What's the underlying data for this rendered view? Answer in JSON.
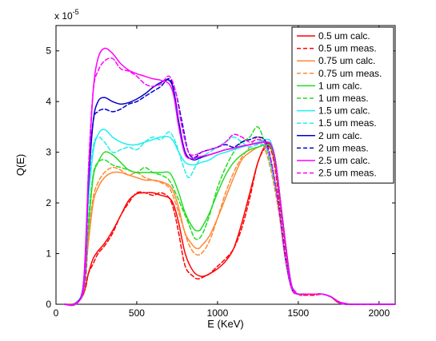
{
  "chart_data": {
    "type": "line",
    "title": "",
    "xlabel": "E (KeV)",
    "ylabel": "Q(E)",
    "y_multiplier_label": "x 10",
    "y_multiplier_exponent": "-5",
    "xlim": [
      0,
      2100
    ],
    "ylim": [
      0,
      5.5
    ],
    "xticks": [
      0,
      500,
      1000,
      1500,
      2000
    ],
    "yticks": [
      0,
      1,
      2,
      3,
      4,
      5
    ],
    "grid": false,
    "legend_position": "top-right",
    "colors": {
      "0.5": "#ff0000",
      "0.75": "#ff8833",
      "1": "#22dd22",
      "1.5": "#22eeee",
      "2": "#0000cc",
      "2.5": "#ff00ff"
    },
    "series": [
      {
        "name": "0.5 um calc.",
        "color": "#ff0000",
        "style": "solid",
        "x": [
          50,
          120,
          170,
          200,
          230,
          260,
          300,
          350,
          400,
          450,
          500,
          550,
          600,
          650,
          700,
          730,
          760,
          800,
          850,
          900,
          950,
          1000,
          1050,
          1100,
          1150,
          1200,
          1250,
          1300,
          1330,
          1360,
          1400,
          1450,
          1480,
          1500,
          1550,
          1600,
          1650,
          1700,
          1720,
          1750,
          1800,
          1850,
          2100
        ],
        "y": [
          0,
          0.02,
          0.2,
          0.6,
          0.9,
          1.05,
          1.2,
          1.45,
          1.75,
          2.05,
          2.18,
          2.2,
          2.2,
          2.15,
          2.1,
          1.95,
          1.6,
          1.0,
          0.65,
          0.55,
          0.6,
          0.7,
          0.85,
          1.1,
          1.6,
          2.2,
          2.8,
          3.15,
          3.1,
          2.7,
          1.7,
          0.5,
          0.25,
          0.2,
          0.2,
          0.2,
          0.2,
          0.15,
          0.1,
          0.03,
          0.01,
          0,
          0
        ]
      },
      {
        "name": "0.5 um meas.",
        "color": "#ff0000",
        "style": "dashed",
        "x": [
          50,
          130,
          180,
          200,
          230,
          260,
          300,
          350,
          400,
          450,
          500,
          550,
          600,
          650,
          700,
          730,
          760,
          800,
          850,
          880,
          920,
          950,
          1000,
          1050,
          1100,
          1150,
          1200,
          1250,
          1300,
          1330,
          1360,
          1400,
          1450,
          1500,
          1550,
          1600,
          1650,
          1700,
          1750,
          1800,
          2100
        ],
        "y": [
          0,
          0.02,
          0.3,
          0.6,
          0.8,
          1.0,
          1.15,
          1.4,
          1.75,
          2.0,
          2.2,
          2.2,
          2.15,
          2.2,
          2.1,
          1.85,
          1.4,
          0.75,
          0.55,
          0.5,
          0.55,
          0.6,
          0.75,
          0.9,
          1.1,
          1.5,
          2.1,
          2.8,
          3.1,
          3.05,
          2.6,
          1.5,
          0.45,
          0.2,
          0.18,
          0.18,
          0.2,
          0.15,
          0.05,
          0,
          0
        ]
      },
      {
        "name": "0.75 um calc.",
        "color": "#ff8833",
        "style": "solid",
        "x": [
          50,
          120,
          170,
          200,
          230,
          260,
          300,
          350,
          400,
          450,
          500,
          550,
          600,
          650,
          700,
          730,
          760,
          800,
          850,
          880,
          900,
          950,
          1000,
          1050,
          1100,
          1150,
          1200,
          1250,
          1300,
          1330,
          1360,
          1400,
          1450,
          1480,
          1500,
          1550,
          1600,
          1650,
          1700,
          1750,
          1800,
          1850,
          2100
        ],
        "y": [
          0,
          0.02,
          0.3,
          1.2,
          2.0,
          2.3,
          2.5,
          2.6,
          2.6,
          2.55,
          2.5,
          2.45,
          2.45,
          2.42,
          2.35,
          2.2,
          1.9,
          1.4,
          1.15,
          1.1,
          1.15,
          1.35,
          1.7,
          2.1,
          2.5,
          2.85,
          3.0,
          3.1,
          3.15,
          3.1,
          2.75,
          1.7,
          0.5,
          0.25,
          0.2,
          0.2,
          0.2,
          0.2,
          0.15,
          0.05,
          0.01,
          0,
          0
        ]
      },
      {
        "name": "0.75 um meas.",
        "color": "#ff8833",
        "style": "dashed",
        "x": [
          50,
          130,
          180,
          200,
          230,
          260,
          300,
          350,
          400,
          450,
          500,
          550,
          600,
          650,
          700,
          740,
          780,
          820,
          860,
          900,
          950,
          1000,
          1050,
          1100,
          1150,
          1200,
          1250,
          1300,
          1340,
          1380,
          1420,
          1460,
          1500,
          1550,
          1600,
          1650,
          1700,
          1750,
          1800,
          2100
        ],
        "y": [
          0,
          0.02,
          0.4,
          1.3,
          2.1,
          2.4,
          2.6,
          2.7,
          2.65,
          2.55,
          2.6,
          2.5,
          2.45,
          2.4,
          2.3,
          2.0,
          1.6,
          1.2,
          1.0,
          1.0,
          1.25,
          1.7,
          2.2,
          2.6,
          2.9,
          3.1,
          3.3,
          3.0,
          2.5,
          1.8,
          0.9,
          0.3,
          0.2,
          0.2,
          0.2,
          0.2,
          0.15,
          0.05,
          0,
          0
        ]
      },
      {
        "name": "1 um calc.",
        "color": "#22dd22",
        "style": "solid",
        "x": [
          50,
          120,
          170,
          200,
          230,
          260,
          300,
          350,
          400,
          450,
          500,
          550,
          600,
          650,
          700,
          730,
          760,
          800,
          850,
          880,
          900,
          950,
          1000,
          1050,
          1100,
          1150,
          1200,
          1250,
          1300,
          1330,
          1360,
          1400,
          1450,
          1480,
          1500,
          1550,
          1600,
          1650,
          1700,
          1750,
          1800,
          1850,
          2100
        ],
        "y": [
          0,
          0.02,
          0.3,
          1.5,
          2.5,
          2.8,
          3.0,
          2.95,
          2.8,
          2.65,
          2.6,
          2.6,
          2.6,
          2.6,
          2.6,
          2.45,
          2.2,
          1.8,
          1.5,
          1.45,
          1.5,
          1.8,
          2.2,
          2.55,
          2.8,
          2.95,
          3.05,
          3.1,
          3.15,
          3.1,
          2.75,
          1.7,
          0.5,
          0.25,
          0.2,
          0.2,
          0.2,
          0.2,
          0.15,
          0.05,
          0.01,
          0,
          0
        ]
      },
      {
        "name": "1 um meas.",
        "color": "#22dd22",
        "style": "dashed",
        "x": [
          50,
          130,
          180,
          200,
          230,
          260,
          300,
          350,
          400,
          450,
          500,
          550,
          600,
          650,
          700,
          740,
          780,
          820,
          860,
          900,
          950,
          1000,
          1050,
          1100,
          1150,
          1200,
          1250,
          1300,
          1340,
          1380,
          1420,
          1460,
          1500,
          1550,
          1600,
          1650,
          1700,
          1750,
          1800,
          2100
        ],
        "y": [
          0,
          0.02,
          0.4,
          1.6,
          2.55,
          2.8,
          2.85,
          2.75,
          2.7,
          2.65,
          2.6,
          2.7,
          2.6,
          2.55,
          2.45,
          2.2,
          1.9,
          1.6,
          1.3,
          1.35,
          1.75,
          2.3,
          2.7,
          3.0,
          3.2,
          3.3,
          3.5,
          3.1,
          2.6,
          1.9,
          0.9,
          0.3,
          0.2,
          0.2,
          0.2,
          0.2,
          0.15,
          0.05,
          0,
          0
        ]
      },
      {
        "name": "1.5 um calc.",
        "color": "#22eeee",
        "style": "solid",
        "x": [
          50,
          120,
          170,
          200,
          230,
          260,
          300,
          350,
          400,
          450,
          500,
          550,
          600,
          650,
          700,
          730,
          760,
          800,
          850,
          900,
          950,
          1000,
          1050,
          1100,
          1150,
          1200,
          1250,
          1300,
          1330,
          1360,
          1400,
          1450,
          1480,
          1500,
          1550,
          1600,
          1650,
          1700,
          1750,
          1800,
          1850,
          2100
        ],
        "y": [
          0,
          0.02,
          0.4,
          2.0,
          3.0,
          3.35,
          3.45,
          3.3,
          3.2,
          3.15,
          3.15,
          3.2,
          3.25,
          3.3,
          3.3,
          3.2,
          3.0,
          2.8,
          2.75,
          2.8,
          2.85,
          2.95,
          3.0,
          3.05,
          3.1,
          3.15,
          3.2,
          3.25,
          3.2,
          2.8,
          1.75,
          0.5,
          0.25,
          0.2,
          0.2,
          0.2,
          0.2,
          0.15,
          0.05,
          0.01,
          0,
          0
        ]
      },
      {
        "name": "1.5 um meas.",
        "color": "#22eeee",
        "style": "dashed",
        "x": [
          50,
          130,
          180,
          200,
          230,
          260,
          300,
          350,
          400,
          450,
          500,
          550,
          600,
          650,
          700,
          740,
          780,
          820,
          860,
          900,
          950,
          1000,
          1050,
          1100,
          1150,
          1200,
          1250,
          1300,
          1340,
          1380,
          1420,
          1460,
          1500,
          1550,
          1600,
          1650,
          1700,
          1750,
          1800,
          2100
        ],
        "y": [
          0,
          0.02,
          0.5,
          2.1,
          3.1,
          3.3,
          3.2,
          3.0,
          3.05,
          3.1,
          3.05,
          3.2,
          3.3,
          3.25,
          3.4,
          3.2,
          2.8,
          2.5,
          2.7,
          2.9,
          3.0,
          3.1,
          3.2,
          3.3,
          3.2,
          3.1,
          3.15,
          3.1,
          2.6,
          1.9,
          0.9,
          0.3,
          0.2,
          0.2,
          0.2,
          0.2,
          0.15,
          0.05,
          0,
          0
        ]
      },
      {
        "name": "2 um calc.",
        "color": "#0000cc",
        "style": "solid",
        "x": [
          50,
          120,
          170,
          200,
          230,
          260,
          300,
          350,
          400,
          450,
          500,
          550,
          600,
          650,
          700,
          730,
          760,
          800,
          850,
          900,
          950,
          1000,
          1050,
          1100,
          1150,
          1200,
          1250,
          1300,
          1330,
          1360,
          1400,
          1450,
          1480,
          1500,
          1550,
          1600,
          1650,
          1700,
          1750,
          1800,
          1850,
          2100
        ],
        "y": [
          0,
          0.02,
          0.4,
          2.3,
          3.6,
          4.0,
          4.08,
          4.0,
          3.95,
          3.98,
          4.05,
          4.15,
          4.28,
          4.38,
          4.42,
          4.2,
          3.6,
          3.0,
          2.85,
          2.9,
          2.95,
          3.0,
          3.05,
          3.08,
          3.12,
          3.15,
          3.18,
          3.2,
          3.15,
          2.8,
          1.75,
          0.5,
          0.25,
          0.2,
          0.2,
          0.2,
          0.2,
          0.15,
          0.05,
          0.01,
          0,
          0
        ]
      },
      {
        "name": "2 um meas.",
        "color": "#0000cc",
        "style": "dashed",
        "x": [
          50,
          130,
          180,
          200,
          230,
          260,
          300,
          350,
          400,
          450,
          500,
          550,
          600,
          650,
          700,
          740,
          780,
          820,
          860,
          900,
          950,
          1000,
          1050,
          1100,
          1150,
          1200,
          1250,
          1300,
          1340,
          1380,
          1420,
          1460,
          1500,
          1550,
          1600,
          1650,
          1700,
          1750,
          1800,
          2100
        ],
        "y": [
          0,
          0.02,
          0.5,
          2.4,
          3.6,
          3.8,
          3.85,
          3.8,
          3.85,
          3.95,
          4.0,
          4.1,
          4.2,
          4.3,
          4.45,
          4.2,
          3.6,
          3.0,
          2.9,
          3.0,
          3.05,
          3.1,
          3.15,
          3.1,
          3.2,
          3.25,
          3.3,
          3.2,
          2.7,
          1.9,
          0.9,
          0.3,
          0.2,
          0.2,
          0.2,
          0.2,
          0.15,
          0.05,
          0,
          0
        ]
      },
      {
        "name": "2.5 um calc.",
        "color": "#ff00ff",
        "style": "solid",
        "x": [
          50,
          120,
          170,
          200,
          230,
          260,
          300,
          350,
          400,
          450,
          500,
          550,
          600,
          650,
          700,
          730,
          760,
          800,
          850,
          900,
          950,
          1000,
          1050,
          1100,
          1150,
          1200,
          1250,
          1300,
          1330,
          1360,
          1400,
          1450,
          1480,
          1500,
          1550,
          1600,
          1650,
          1700,
          1750,
          1800,
          1850,
          2100
        ],
        "y": [
          0,
          0.02,
          0.4,
          2.5,
          4.2,
          4.85,
          5.05,
          4.95,
          4.75,
          4.62,
          4.55,
          4.5,
          4.45,
          4.42,
          4.35,
          4.1,
          3.5,
          2.95,
          2.88,
          2.92,
          2.95,
          3.0,
          3.05,
          3.08,
          3.12,
          3.15,
          3.18,
          3.2,
          3.15,
          2.8,
          1.75,
          0.5,
          0.25,
          0.2,
          0.2,
          0.2,
          0.2,
          0.15,
          0.05,
          0.01,
          0,
          0
        ]
      },
      {
        "name": "2.5 um meas.",
        "color": "#ff00ff",
        "style": "dashed",
        "x": [
          50,
          130,
          180,
          200,
          230,
          260,
          300,
          350,
          400,
          450,
          500,
          550,
          600,
          650,
          700,
          740,
          780,
          820,
          860,
          900,
          950,
          1000,
          1050,
          1100,
          1150,
          1200,
          1250,
          1300,
          1340,
          1380,
          1420,
          1460,
          1500,
          1550,
          1600,
          1650,
          1700,
          1750,
          1800,
          2100
        ],
        "y": [
          0,
          0.02,
          0.5,
          2.6,
          4.2,
          4.6,
          4.8,
          4.85,
          4.65,
          4.6,
          4.5,
          4.35,
          4.3,
          4.35,
          4.5,
          4.2,
          3.5,
          3.0,
          2.95,
          3.0,
          3.05,
          3.1,
          3.2,
          3.35,
          3.3,
          3.2,
          3.25,
          3.15,
          2.7,
          1.9,
          0.9,
          0.3,
          0.2,
          0.2,
          0.2,
          0.2,
          0.15,
          0.05,
          0,
          0
        ]
      }
    ]
  }
}
